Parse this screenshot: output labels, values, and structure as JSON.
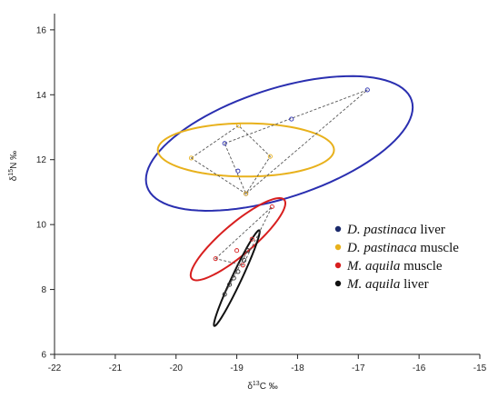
{
  "chart_data": {
    "type": "scatter",
    "title": "",
    "xlabel": {
      "prefix": "δ",
      "sup": "13",
      "suffix": "C ‰"
    },
    "ylabel": {
      "prefix": "δ",
      "sup": "15",
      "suffix": "N ‰"
    },
    "xlim": [
      -22,
      -15
    ],
    "ylim": [
      6,
      16.5
    ],
    "x_ticks": [
      -22,
      -21,
      -20,
      -19,
      -18,
      -17,
      -16,
      -15
    ],
    "y_ticks": [
      6,
      8,
      10,
      12,
      14,
      16
    ],
    "x_tick_labels": [
      "-22",
      "-21",
      "-20",
      "-19",
      "-18",
      "-17",
      "-16",
      "-15"
    ],
    "y_tick_labels": [
      "6",
      "8",
      "10",
      "12",
      "14",
      "16"
    ],
    "grid": false,
    "legend_position": "right",
    "legend": [
      {
        "name_italic": "D. pastinaca",
        "name_rest": " liver",
        "color": "#1b2a6b"
      },
      {
        "name_italic": "D. pastinaca",
        "name_rest": " muscle",
        "color": "#e8b11c"
      },
      {
        "name_italic": "M. aquila",
        "name_rest": " muscle",
        "color": "#d81f1f"
      },
      {
        "name_italic": "M. aquila",
        "name_rest": " liver",
        "color": "#111111"
      }
    ],
    "series": [
      {
        "group": "D. pastinaca liver",
        "color": "#2a2fb0",
        "ellipse": {
          "cx": -18.3,
          "cy": 12.5,
          "a": 2.65,
          "b": 1.45,
          "angle_deg": 42
        },
        "points": [
          [
            -19.2,
            12.5
          ],
          [
            -18.1,
            13.25
          ],
          [
            -16.85,
            14.15
          ],
          [
            -18.85,
            10.95
          ],
          [
            -18.98,
            11.65
          ]
        ],
        "hull": [
          [
            -19.2,
            12.5
          ],
          [
            -16.85,
            14.15
          ],
          [
            -18.85,
            10.95
          ]
        ]
      },
      {
        "group": "D. pastinaca muscle",
        "color": "#e8b11c",
        "ellipse": {
          "cx": -18.85,
          "cy": 12.3,
          "a": 1.45,
          "b": 0.82,
          "angle_deg": 0
        },
        "points": [
          [
            -19.75,
            12.05
          ],
          [
            -18.97,
            13.05
          ],
          [
            -18.45,
            12.1
          ],
          [
            -18.85,
            10.95
          ]
        ],
        "hull": [
          [
            -19.75,
            12.05
          ],
          [
            -18.97,
            13.05
          ],
          [
            -18.45,
            12.1
          ],
          [
            -18.85,
            10.95
          ]
        ]
      },
      {
        "group": "M. aquila muscle",
        "color": "#d81f1f",
        "ellipse": {
          "cx": -18.98,
          "cy": 9.55,
          "a": 1.45,
          "b": 0.33,
          "angle_deg": 60
        },
        "points": [
          [
            -19.35,
            8.95
          ],
          [
            -18.42,
            10.55
          ],
          [
            -19.0,
            9.2
          ],
          [
            -18.75,
            9.55
          ],
          [
            -18.9,
            8.75
          ]
        ],
        "hull": [
          [
            -19.35,
            8.95
          ],
          [
            -18.42,
            10.55
          ],
          [
            -18.9,
            8.75
          ]
        ]
      },
      {
        "group": "M. aquila liver",
        "color": "#111111",
        "ellipse": {
          "cx": -19.0,
          "cy": 8.35,
          "a": 1.52,
          "b": 0.085,
          "angle_deg": 76
        },
        "points": [
          [
            -19.2,
            7.85
          ],
          [
            -19.12,
            8.15
          ],
          [
            -18.98,
            8.55
          ],
          [
            -18.88,
            8.9
          ],
          [
            -18.82,
            9.2
          ],
          [
            -19.05,
            8.35
          ]
        ],
        "hull": [
          [
            -19.2,
            7.85
          ],
          [
            -18.82,
            9.2
          ]
        ]
      }
    ]
  }
}
